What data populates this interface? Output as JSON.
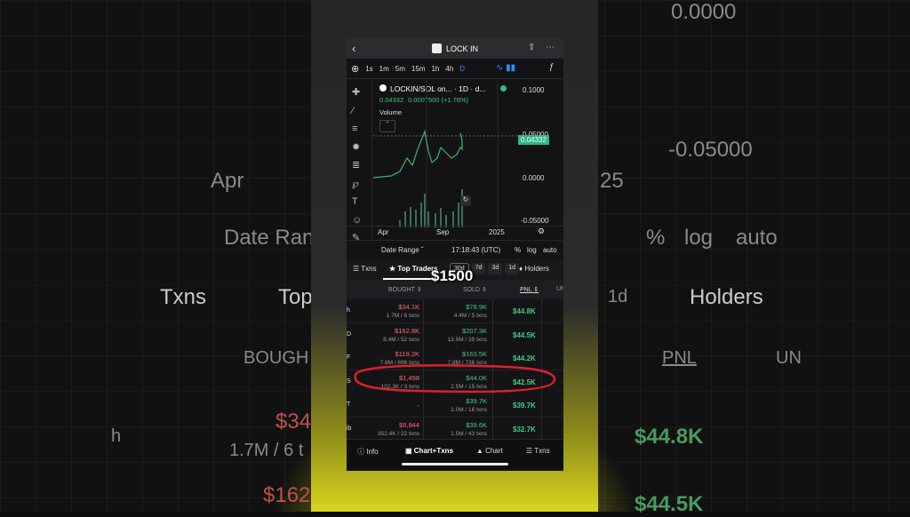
{
  "background": {
    "texts": [
      "0.0000",
      "-0.05000",
      "Apr",
      "25",
      "Date Ran",
      "%",
      "log",
      "auto",
      "Txns",
      "Top",
      "1d",
      "Holders",
      "BOUGH",
      "PNL",
      "UN",
      "$34",
      "1.7M / 6 t",
      "h",
      "$44.8K",
      "$162",
      "$44.5K"
    ]
  },
  "header": {
    "title": "LOCK IN"
  },
  "toolbar": {
    "intervals": [
      "1s",
      "1m",
      "5m",
      "15m",
      "1h",
      "4h",
      "D"
    ]
  },
  "chart": {
    "pair": "LOCKIN/SOL on... · 1D · d...",
    "price": "0.04332",
    "change": "0.0007500 (+1.76%)",
    "volume_label": "Volume",
    "price_labels": [
      "0.1000",
      "0.05000",
      "0.0000",
      "-0.05000"
    ],
    "current_price": "0.04332",
    "x_labels": [
      "Apr",
      "Sep",
      "2025"
    ]
  },
  "range_bar": {
    "date_range": "Date Range",
    "time": "17:18:43 (UTC)",
    "options": [
      "%",
      "log",
      "auto"
    ]
  },
  "tabs": {
    "items": [
      "Txns",
      "Top Traders"
    ],
    "periods": [
      "30d",
      "7d",
      "3d",
      "1d"
    ],
    "holders": "Holders"
  },
  "overlay": {
    "caption": "$1500"
  },
  "table": {
    "columns": [
      "BOUGHT",
      "SOLD",
      "PNL",
      "UN"
    ],
    "rows": [
      {
        "label": "h",
        "bought": "$34.1K",
        "bought_sub": "1.7M / 6 txns",
        "sold": "$78.9K",
        "sold_sub": "4.4M / 5 txns",
        "pnl": "$44.8K"
      },
      {
        "label": "D",
        "bought": "$162.8K",
        "bought_sub": "8.4M / 52 txns",
        "sold": "$207.3K",
        "sold_sub": "13.5M / 39 txns",
        "pnl": "$44.5K"
      },
      {
        "label": "F",
        "bought": "$119.2K",
        "bought_sub": "7.8M / 696 txns",
        "sold": "$163.5K",
        "sold_sub": "7.8M / 736 txns",
        "pnl": "$44.2K"
      },
      {
        "label": "S",
        "bought": "$1,498",
        "bought_sub": "102.3K / 3 txns",
        "sold": "$44.0K",
        "sold_sub": "2.5M / 15 txns",
        "pnl": "$42.5K"
      },
      {
        "label": "T",
        "bought": "-",
        "sold": "$39.7K",
        "sold_sub": "1.0M / 16 txns",
        "pnl": "$39.7K"
      },
      {
        "label": "ib",
        "bought": "$6,944",
        "bought_sub": "352.4K / 22 txns",
        "sold": "$39.6K",
        "sold_sub": "1.5M / 43 txns",
        "pnl": "$32.7K"
      }
    ]
  },
  "bottom_nav": {
    "items": [
      "Info",
      "Chart+Txns",
      "Chart",
      "Txns"
    ]
  }
}
